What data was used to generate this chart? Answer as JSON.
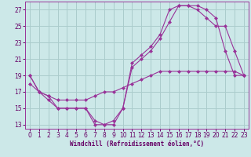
{
  "xlabel": "Windchill (Refroidissement éolien,°C)",
  "bg_color": "#cce8e8",
  "grid_color": "#aacccc",
  "line_color": "#993399",
  "spine_color": "#993399",
  "xlim": [
    -0.5,
    23.5
  ],
  "ylim": [
    12.5,
    28.0
  ],
  "yticks": [
    13,
    15,
    17,
    19,
    21,
    23,
    25,
    27
  ],
  "xticks": [
    0,
    1,
    2,
    3,
    4,
    5,
    6,
    7,
    8,
    9,
    10,
    11,
    12,
    13,
    14,
    15,
    16,
    17,
    18,
    19,
    20,
    21,
    22,
    23
  ],
  "line1_x": [
    0,
    1,
    2,
    3,
    4,
    5,
    6,
    7,
    8,
    9,
    10,
    11,
    12,
    13,
    14,
    15,
    16,
    17,
    18,
    19,
    20,
    21,
    22,
    23
  ],
  "line1_y": [
    19,
    17,
    16.5,
    15,
    15,
    15,
    15,
    13.5,
    13,
    13,
    15,
    20.5,
    21.5,
    22.5,
    24,
    27,
    27.5,
    27.5,
    27.5,
    27,
    26,
    22,
    19,
    19
  ],
  "line2_x": [
    0,
    1,
    2,
    3,
    4,
    5,
    6,
    7,
    8,
    9,
    10,
    11,
    12,
    13,
    14,
    15,
    16,
    17,
    18,
    19,
    20,
    21,
    22,
    23
  ],
  "line2_y": [
    19,
    17,
    16,
    15,
    15,
    15,
    15,
    13,
    13,
    13.5,
    15,
    20,
    21,
    22,
    23.5,
    25.5,
    27.5,
    27.5,
    27,
    26,
    25,
    25,
    22,
    19
  ],
  "line3_x": [
    0,
    1,
    2,
    3,
    4,
    5,
    6,
    7,
    8,
    9,
    10,
    11,
    12,
    13,
    14,
    15,
    16,
    17,
    18,
    19,
    20,
    21,
    22,
    23
  ],
  "line3_y": [
    18,
    17,
    16.5,
    16,
    16,
    16,
    16,
    16.5,
    17,
    17,
    17.5,
    18,
    18.5,
    19,
    19.5,
    19.5,
    19.5,
    19.5,
    19.5,
    19.5,
    19.5,
    19.5,
    19.5,
    19
  ],
  "tick_fontsize": 5.5,
  "xlabel_fontsize": 5.5,
  "tick_color": "#660066",
  "xlabel_color": "#660066"
}
